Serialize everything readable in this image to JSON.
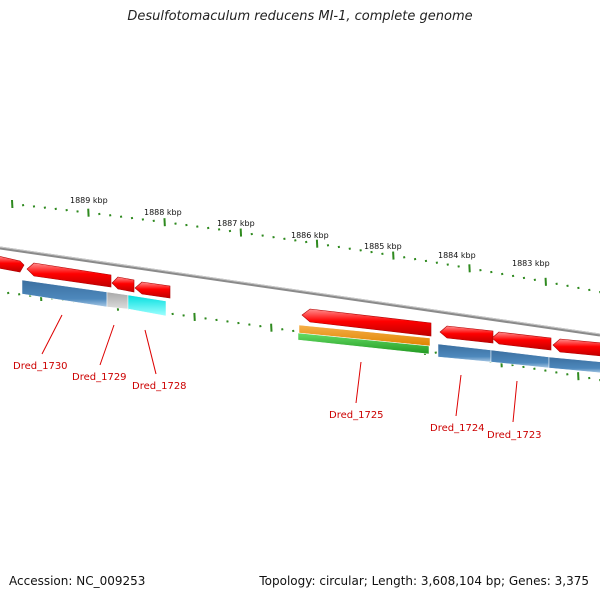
{
  "title": "Desulfotomaculum reducens MI-1, complete genome",
  "accession": "Accession: NC_009253",
  "summary": "Topology: circular; Length: 3,608,104 bp; Genes: 3,375",
  "colors": {
    "backbone": "#8a8a8a",
    "tick": "#2f8a1f",
    "cds": "#ff0000",
    "cog_blue": "#4a84b6",
    "cog_gray": "#b8b8b8",
    "cog_cyan": "#00eeee",
    "cog_orange": "#f09010",
    "cog_green": "#33bb33",
    "gene_label": "#cc0000"
  },
  "scale_labels": [
    "1889 kbp",
    "1888 kbp",
    "1887 kbp",
    "1886 kbp",
    "1885 kbp",
    "1884 kbp",
    "1883 kbp"
  ],
  "genes": [
    "Dred_1730",
    "Dred_1729",
    "Dred_1728",
    "Dred_1725",
    "Dred_1724",
    "Dred_1723"
  ]
}
